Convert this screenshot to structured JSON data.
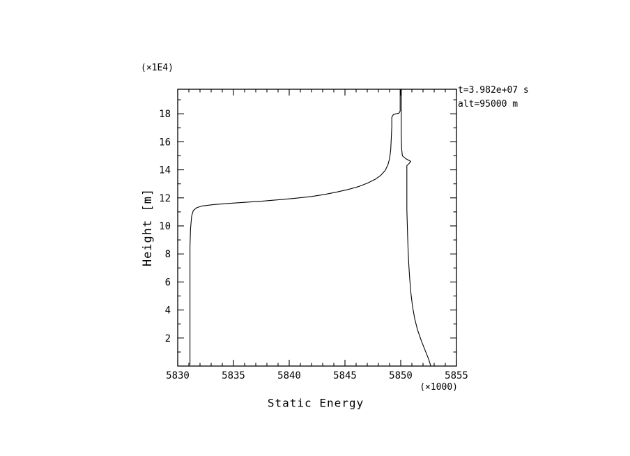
{
  "window": {
    "background": "#ffffff"
  },
  "annotations": {
    "time_label": "t=3.982e+07 s",
    "altitude_label": "alt=95000 m"
  },
  "chart_data": {
    "type": "line",
    "title": "",
    "xlabel": "Static Energy",
    "ylabel": "Height [m]",
    "x_scale_note": "(×1000)",
    "y_scale_note": "(×1E4)",
    "xlim": [
      5830,
      5855
    ],
    "ylim": [
      0,
      19.75
    ],
    "xticks_major": [
      5830,
      5835,
      5840,
      5845,
      5850,
      5855
    ],
    "xtick_labels": [
      "5830",
      "5835",
      "5840",
      "5845",
      "5850",
      "5855"
    ],
    "xticks_minor": [
      5831,
      5832,
      5833,
      5834,
      5836,
      5837,
      5838,
      5839,
      5841,
      5842,
      5843,
      5844,
      5846,
      5847,
      5848,
      5849,
      5851,
      5852,
      5853,
      5854
    ],
    "yticks_major": [
      2,
      4,
      6,
      8,
      10,
      12,
      14,
      16,
      18
    ],
    "ytick_labels": [
      "2",
      "4",
      "6",
      "8",
      "10",
      "12",
      "14",
      "16",
      "18"
    ],
    "yticks_minor": [
      1,
      3,
      5,
      7,
      9,
      11,
      13,
      15,
      17,
      19
    ],
    "grid": false,
    "legend": "none",
    "line_color": "#000000",
    "frame_color": "#000000",
    "series": [
      {
        "name": "profile-left",
        "points": [
          [
            5831.1,
            0.1
          ],
          [
            5831.1,
            8.5
          ],
          [
            5831.15,
            9.8
          ],
          [
            5831.25,
            10.7
          ],
          [
            5831.4,
            11.1
          ],
          [
            5831.7,
            11.3
          ],
          [
            5832.2,
            11.42
          ],
          [
            5833.2,
            11.52
          ],
          [
            5834.5,
            11.6
          ],
          [
            5836.0,
            11.68
          ],
          [
            5837.5,
            11.76
          ],
          [
            5839.0,
            11.86
          ],
          [
            5840.5,
            11.97
          ],
          [
            5842.0,
            12.1
          ],
          [
            5843.2,
            12.25
          ],
          [
            5844.3,
            12.42
          ],
          [
            5845.3,
            12.6
          ],
          [
            5846.2,
            12.8
          ],
          [
            5847.0,
            13.05
          ],
          [
            5847.7,
            13.32
          ],
          [
            5848.2,
            13.6
          ],
          [
            5848.6,
            13.95
          ],
          [
            5848.85,
            14.35
          ],
          [
            5849.0,
            14.8
          ],
          [
            5849.1,
            15.4
          ],
          [
            5849.15,
            16.2
          ],
          [
            5849.2,
            17.1
          ],
          [
            5849.2,
            17.75
          ],
          [
            5849.35,
            17.95
          ],
          [
            5849.85,
            18.05
          ],
          [
            5849.95,
            18.2
          ],
          [
            5849.95,
            19.75
          ]
        ]
      },
      {
        "name": "profile-right",
        "points": [
          [
            5852.7,
            0.0
          ],
          [
            5852.5,
            0.5
          ],
          [
            5852.2,
            1.1
          ],
          [
            5851.85,
            1.8
          ],
          [
            5851.5,
            2.6
          ],
          [
            5851.25,
            3.4
          ],
          [
            5851.05,
            4.3
          ],
          [
            5850.9,
            5.3
          ],
          [
            5850.8,
            6.3
          ],
          [
            5850.72,
            7.3
          ],
          [
            5850.66,
            8.3
          ],
          [
            5850.62,
            9.3
          ],
          [
            5850.58,
            10.3
          ],
          [
            5850.55,
            11.2
          ],
          [
            5850.55,
            14.3
          ],
          [
            5850.75,
            14.45
          ],
          [
            5850.9,
            14.6
          ],
          [
            5850.45,
            14.8
          ],
          [
            5850.15,
            15.0
          ],
          [
            5850.08,
            15.5
          ],
          [
            5850.05,
            16.5
          ],
          [
            5850.05,
            19.75
          ]
        ]
      }
    ]
  }
}
